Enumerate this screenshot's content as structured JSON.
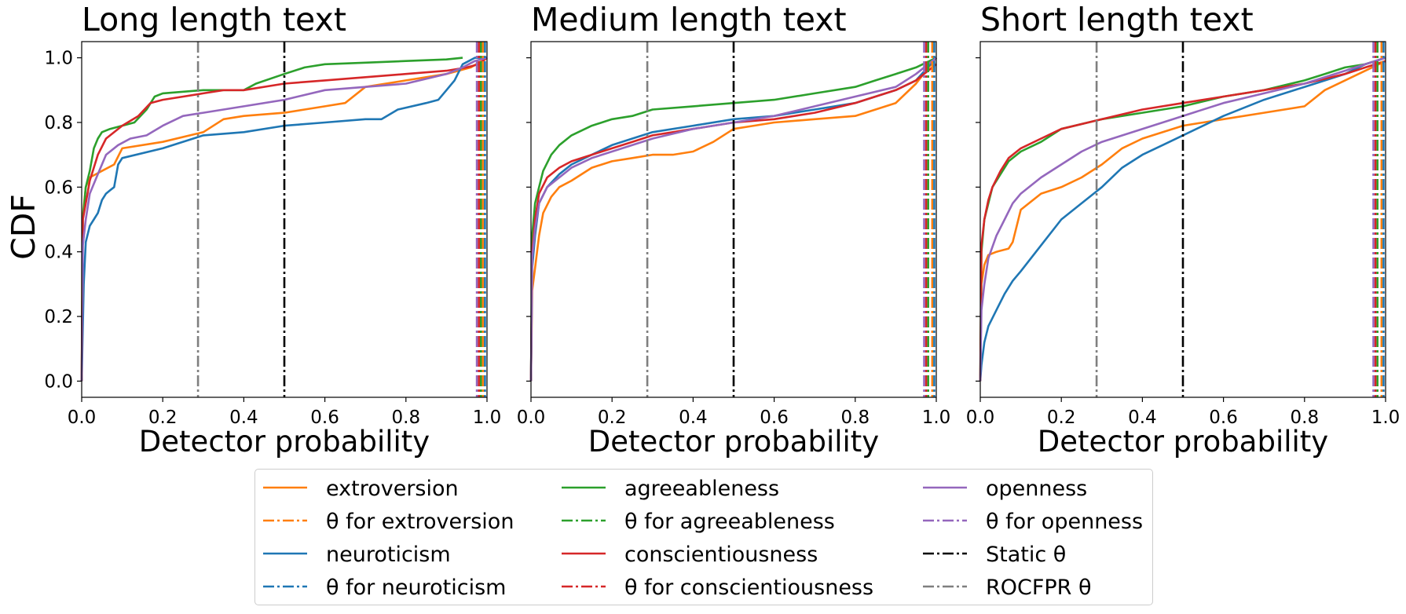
{
  "chart_data": {
    "type": "line",
    "ylabel": "CDF",
    "xlabel": "Detector probability",
    "xlim": [
      0.0,
      1.0
    ],
    "ylim": [
      -0.05,
      1.05
    ],
    "xticks": [
      "0.0",
      "0.2",
      "0.4",
      "0.6",
      "0.8",
      "1.0"
    ],
    "yticks": [
      "0.0",
      "0.2",
      "0.4",
      "0.6",
      "0.8",
      "1.0"
    ],
    "static_theta": 0.5,
    "rocfpr_theta": 0.287,
    "colors": {
      "extroversion": "#ff7f0e",
      "neuroticism": "#1f77b4",
      "agreeableness": "#2ca02c",
      "conscientiousness": "#d62728",
      "openness": "#9467bd",
      "static": "#000000",
      "rocfpr": "#7f7f7f"
    },
    "panels": [
      {
        "title": "Long length text",
        "trait_thetas": {
          "extroversion": 0.99,
          "neuroticism": 0.995,
          "agreeableness": 0.985,
          "conscientiousness": 0.98,
          "openness": 0.975
        },
        "series": [
          {
            "name": "extroversion",
            "x": [
              0,
              0.002,
              0.01,
              0.02,
              0.05,
              0.08,
              0.1,
              0.2,
              0.3,
              0.35,
              0.4,
              0.5,
              0.55,
              0.6,
              0.65,
              0.7,
              0.8,
              0.9,
              0.96,
              1.0
            ],
            "y": [
              0,
              0.5,
              0.6,
              0.63,
              0.65,
              0.67,
              0.72,
              0.74,
              0.77,
              0.81,
              0.82,
              0.83,
              0.84,
              0.85,
              0.86,
              0.91,
              0.93,
              0.95,
              0.97,
              1.0
            ]
          },
          {
            "name": "neuroticism",
            "x": [
              0,
              0.005,
              0.01,
              0.02,
              0.03,
              0.04,
              0.05,
              0.06,
              0.07,
              0.08,
              0.09,
              0.1,
              0.2,
              0.3,
              0.4,
              0.5,
              0.6,
              0.7,
              0.74,
              0.78,
              0.85,
              0.88,
              0.9,
              0.92,
              0.94,
              0.97,
              1.0
            ],
            "y": [
              0,
              0.3,
              0.43,
              0.48,
              0.5,
              0.52,
              0.56,
              0.58,
              0.59,
              0.6,
              0.67,
              0.69,
              0.72,
              0.76,
              0.77,
              0.79,
              0.8,
              0.81,
              0.81,
              0.84,
              0.86,
              0.87,
              0.9,
              0.93,
              0.98,
              1.0,
              1.0
            ]
          },
          {
            "name": "agreeableness",
            "x": [
              0,
              0.003,
              0.01,
              0.02,
              0.03,
              0.04,
              0.05,
              0.07,
              0.1,
              0.13,
              0.16,
              0.18,
              0.2,
              0.3,
              0.4,
              0.43,
              0.5,
              0.55,
              0.6,
              0.7,
              0.8,
              0.9,
              0.94
            ],
            "y": [
              0,
              0.5,
              0.6,
              0.65,
              0.72,
              0.75,
              0.77,
              0.78,
              0.79,
              0.8,
              0.84,
              0.88,
              0.89,
              0.9,
              0.9,
              0.92,
              0.95,
              0.97,
              0.98,
              0.985,
              0.99,
              0.995,
              1.0
            ]
          },
          {
            "name": "conscientiousness",
            "x": [
              0,
              0.003,
              0.01,
              0.02,
              0.04,
              0.06,
              0.1,
              0.14,
              0.17,
              0.2,
              0.3,
              0.35,
              0.4,
              0.5,
              0.6,
              0.7,
              0.8,
              0.9,
              0.95,
              0.98,
              1.0
            ],
            "y": [
              0,
              0.5,
              0.55,
              0.62,
              0.7,
              0.75,
              0.79,
              0.82,
              0.86,
              0.87,
              0.89,
              0.9,
              0.9,
              0.92,
              0.93,
              0.94,
              0.95,
              0.96,
              0.97,
              0.98,
              1.0
            ]
          },
          {
            "name": "openness",
            "x": [
              0,
              0.003,
              0.01,
              0.02,
              0.04,
              0.06,
              0.09,
              0.12,
              0.16,
              0.2,
              0.25,
              0.3,
              0.4,
              0.5,
              0.6,
              0.7,
              0.8,
              0.9,
              0.94,
              0.97,
              1.0
            ],
            "y": [
              0,
              0.42,
              0.5,
              0.58,
              0.64,
              0.7,
              0.73,
              0.75,
              0.76,
              0.79,
              0.82,
              0.83,
              0.85,
              0.87,
              0.9,
              0.91,
              0.92,
              0.95,
              0.97,
              0.99,
              1.0
            ]
          }
        ]
      },
      {
        "title": "Medium length text",
        "trait_thetas": {
          "extroversion": 0.99,
          "neuroticism": 0.995,
          "agreeableness": 0.98,
          "conscientiousness": 0.975,
          "openness": 0.97
        },
        "series": [
          {
            "name": "extroversion",
            "x": [
              0,
              0.003,
              0.01,
              0.02,
              0.03,
              0.05,
              0.07,
              0.1,
              0.15,
              0.2,
              0.25,
              0.3,
              0.35,
              0.4,
              0.45,
              0.5,
              0.55,
              0.6,
              0.7,
              0.8,
              0.9,
              0.95,
              1.0
            ],
            "y": [
              0,
              0.28,
              0.35,
              0.45,
              0.52,
              0.57,
              0.6,
              0.62,
              0.66,
              0.68,
              0.69,
              0.7,
              0.7,
              0.71,
              0.74,
              0.78,
              0.79,
              0.8,
              0.81,
              0.82,
              0.86,
              0.92,
              1.0
            ]
          },
          {
            "name": "neuroticism",
            "x": [
              0,
              0.003,
              0.01,
              0.02,
              0.04,
              0.07,
              0.1,
              0.15,
              0.2,
              0.3,
              0.4,
              0.5,
              0.6,
              0.7,
              0.8,
              0.9,
              0.95,
              1.0
            ],
            "y": [
              0,
              0.35,
              0.45,
              0.55,
              0.6,
              0.64,
              0.67,
              0.7,
              0.73,
              0.77,
              0.79,
              0.81,
              0.82,
              0.84,
              0.86,
              0.9,
              0.93,
              1.0
            ]
          },
          {
            "name": "agreeableness",
            "x": [
              0,
              0.003,
              0.01,
              0.02,
              0.03,
              0.05,
              0.07,
              0.1,
              0.15,
              0.2,
              0.25,
              0.3,
              0.4,
              0.5,
              0.6,
              0.7,
              0.8,
              0.85,
              0.9,
              0.95,
              1.0
            ],
            "y": [
              0,
              0.45,
              0.55,
              0.6,
              0.65,
              0.7,
              0.73,
              0.76,
              0.79,
              0.81,
              0.82,
              0.84,
              0.85,
              0.86,
              0.87,
              0.89,
              0.91,
              0.93,
              0.95,
              0.97,
              1.0
            ]
          },
          {
            "name": "conscientiousness",
            "x": [
              0,
              0.003,
              0.01,
              0.02,
              0.04,
              0.07,
              0.1,
              0.15,
              0.2,
              0.25,
              0.3,
              0.4,
              0.5,
              0.6,
              0.7,
              0.8,
              0.9,
              0.95,
              1.0
            ],
            "y": [
              0,
              0.4,
              0.5,
              0.58,
              0.63,
              0.66,
              0.68,
              0.7,
              0.72,
              0.74,
              0.76,
              0.78,
              0.8,
              0.81,
              0.83,
              0.86,
              0.9,
              0.93,
              0.98
            ]
          },
          {
            "name": "openness",
            "x": [
              0,
              0.003,
              0.01,
              0.02,
              0.04,
              0.07,
              0.1,
              0.15,
              0.2,
              0.25,
              0.3,
              0.4,
              0.5,
              0.6,
              0.7,
              0.8,
              0.9,
              0.95,
              1.0
            ],
            "y": [
              0,
              0.38,
              0.47,
              0.55,
              0.6,
              0.63,
              0.66,
              0.69,
              0.71,
              0.73,
              0.75,
              0.78,
              0.8,
              0.82,
              0.85,
              0.88,
              0.91,
              0.95,
              1.0
            ]
          }
        ]
      },
      {
        "title": "Short length text",
        "trait_thetas": {
          "extroversion": 0.99,
          "neuroticism": 0.995,
          "agreeableness": 0.98,
          "conscientiousness": 0.975,
          "openness": 0.97
        },
        "series": [
          {
            "name": "extroversion",
            "x": [
              0,
              0.003,
              0.01,
              0.02,
              0.04,
              0.07,
              0.08,
              0.1,
              0.15,
              0.2,
              0.25,
              0.3,
              0.35,
              0.4,
              0.5,
              0.55,
              0.6,
              0.7,
              0.8,
              0.85,
              0.9,
              0.95,
              1.0
            ],
            "y": [
              0,
              0.3,
              0.36,
              0.39,
              0.4,
              0.41,
              0.43,
              0.53,
              0.58,
              0.6,
              0.63,
              0.67,
              0.72,
              0.75,
              0.79,
              0.8,
              0.81,
              0.83,
              0.85,
              0.9,
              0.93,
              0.96,
              0.99
            ]
          },
          {
            "name": "neuroticism",
            "x": [
              0,
              0.003,
              0.01,
              0.02,
              0.04,
              0.06,
              0.08,
              0.1,
              0.15,
              0.2,
              0.25,
              0.3,
              0.35,
              0.4,
              0.45,
              0.5,
              0.6,
              0.7,
              0.8,
              0.9,
              0.95,
              1.0
            ],
            "y": [
              0,
              0.05,
              0.12,
              0.17,
              0.22,
              0.27,
              0.31,
              0.34,
              0.42,
              0.5,
              0.55,
              0.6,
              0.66,
              0.7,
              0.73,
              0.76,
              0.82,
              0.87,
              0.91,
              0.95,
              0.98,
              1.0
            ]
          },
          {
            "name": "agreeableness",
            "x": [
              0,
              0.003,
              0.01,
              0.02,
              0.03,
              0.05,
              0.07,
              0.1,
              0.15,
              0.2,
              0.3,
              0.4,
              0.5,
              0.6,
              0.7,
              0.8,
              0.85,
              0.9,
              0.95,
              1.0
            ],
            "y": [
              0,
              0.4,
              0.5,
              0.55,
              0.6,
              0.64,
              0.68,
              0.71,
              0.74,
              0.78,
              0.81,
              0.83,
              0.85,
              0.88,
              0.9,
              0.93,
              0.95,
              0.97,
              0.98,
              1.0
            ]
          },
          {
            "name": "conscientiousness",
            "x": [
              0,
              0.003,
              0.01,
              0.02,
              0.03,
              0.05,
              0.07,
              0.1,
              0.15,
              0.2,
              0.3,
              0.4,
              0.5,
              0.6,
              0.7,
              0.8,
              0.9,
              0.95,
              1.0
            ],
            "y": [
              0,
              0.42,
              0.5,
              0.56,
              0.6,
              0.65,
              0.69,
              0.72,
              0.75,
              0.78,
              0.81,
              0.84,
              0.86,
              0.88,
              0.9,
              0.92,
              0.95,
              0.97,
              0.99
            ]
          },
          {
            "name": "openness",
            "x": [
              0,
              0.003,
              0.01,
              0.02,
              0.04,
              0.06,
              0.08,
              0.1,
              0.15,
              0.2,
              0.25,
              0.3,
              0.4,
              0.5,
              0.6,
              0.7,
              0.8,
              0.9,
              0.95,
              1.0
            ],
            "y": [
              0,
              0.22,
              0.3,
              0.38,
              0.45,
              0.5,
              0.55,
              0.58,
              0.63,
              0.67,
              0.71,
              0.74,
              0.78,
              0.82,
              0.86,
              0.89,
              0.92,
              0.96,
              0.98,
              1.0
            ]
          }
        ]
      }
    ],
    "legend": [
      {
        "label": "extroversion",
        "color": "#ff7f0e",
        "dash": false
      },
      {
        "label": "θ for extroversion",
        "color": "#ff7f0e",
        "dash": true
      },
      {
        "label": "neuroticism",
        "color": "#1f77b4",
        "dash": false
      },
      {
        "label": "θ for neuroticism",
        "color": "#1f77b4",
        "dash": true
      },
      {
        "label": "agreeableness",
        "color": "#2ca02c",
        "dash": false
      },
      {
        "label": "θ for agreeableness",
        "color": "#2ca02c",
        "dash": true
      },
      {
        "label": "conscientiousness",
        "color": "#d62728",
        "dash": false
      },
      {
        "label": "θ for conscientiousness",
        "color": "#d62728",
        "dash": true
      },
      {
        "label": "openness",
        "color": "#9467bd",
        "dash": false
      },
      {
        "label": "θ for openness",
        "color": "#9467bd",
        "dash": true
      },
      {
        "label": "Static θ",
        "color": "#000000",
        "dash": true
      },
      {
        "label": "ROCFPR θ",
        "color": "#7f7f7f",
        "dash": true
      }
    ]
  }
}
